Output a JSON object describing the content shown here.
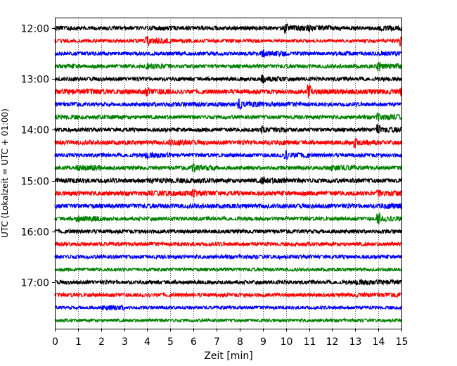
{
  "chart_data": {
    "type": "line",
    "subtype": "helicorder",
    "title": "",
    "xlabel": "Zeit  [min]",
    "ylabel": "UTC (Lokalzeit = UTC + 01:00)",
    "xlim": [
      0,
      15
    ],
    "x_ticks": [
      "0",
      "1",
      "2",
      "3",
      "4",
      "5",
      "6",
      "7",
      "8",
      "9",
      "10",
      "11",
      "12",
      "13",
      "14",
      "15"
    ],
    "x_gridlines": "dotted",
    "row_interval_minutes": 15,
    "y_tick_labels": [
      {
        "row": 0,
        "label": "12:00"
      },
      {
        "row": 4,
        "label": "13:00"
      },
      {
        "row": 8,
        "label": "14:00"
      },
      {
        "row": 12,
        "label": "15:00"
      },
      {
        "row": 16,
        "label": "16:00"
      },
      {
        "row": 20,
        "label": "17:00"
      }
    ],
    "color_cycle": [
      "#000000",
      "#ff0000",
      "#0000ff",
      "#008000"
    ],
    "series": [
      {
        "start": "12:00",
        "color": "#000000",
        "values": [
          0.35,
          0.28,
          0.3,
          0.3,
          0.35,
          0.35,
          0.32,
          0.3,
          0.32,
          0.3,
          0.9,
          0.6,
          0.3,
          0.3,
          0.45,
          0.3
        ]
      },
      {
        "start": "12:15",
        "color": "#ff0000",
        "values": [
          0.3,
          0.28,
          0.25,
          0.3,
          0.9,
          0.3,
          0.28,
          0.3,
          0.3,
          0.25,
          0.25,
          0.25,
          0.25,
          0.28,
          0.28,
          0.9
        ]
      },
      {
        "start": "12:30",
        "color": "#0000ff",
        "values": [
          0.3,
          0.3,
          0.28,
          0.3,
          0.3,
          0.3,
          0.3,
          0.28,
          0.3,
          0.9,
          0.3,
          0.28,
          0.35,
          0.3,
          0.35,
          0.3
        ]
      },
      {
        "start": "12:45",
        "color": "#008000",
        "values": [
          0.35,
          0.3,
          0.3,
          0.3,
          0.55,
          0.3,
          0.3,
          0.3,
          0.3,
          0.3,
          0.3,
          0.3,
          0.3,
          0.3,
          0.9,
          0.3
        ]
      },
      {
        "start": "13:00",
        "color": "#000000",
        "values": [
          0.32,
          0.3,
          0.3,
          0.3,
          0.3,
          0.3,
          0.3,
          0.3,
          0.3,
          0.8,
          0.3,
          0.3,
          0.3,
          0.3,
          0.3,
          0.3
        ]
      },
      {
        "start": "13:15",
        "color": "#ff0000",
        "values": [
          0.55,
          0.45,
          0.4,
          0.4,
          0.8,
          0.35,
          0.35,
          0.35,
          0.35,
          0.35,
          0.35,
          1.3,
          0.4,
          0.4,
          0.4,
          0.9
        ]
      },
      {
        "start": "13:30",
        "color": "#0000ff",
        "values": [
          0.35,
          0.3,
          0.3,
          0.3,
          0.35,
          0.35,
          0.35,
          0.35,
          1.0,
          0.35,
          0.35,
          0.3,
          0.3,
          0.3,
          0.3,
          0.3
        ]
      },
      {
        "start": "13:45",
        "color": "#008000",
        "values": [
          0.35,
          0.3,
          0.35,
          0.3,
          0.3,
          0.3,
          0.3,
          0.3,
          0.3,
          0.3,
          0.3,
          0.3,
          0.3,
          0.3,
          0.8,
          0.3
        ]
      },
      {
        "start": "14:00",
        "color": "#000000",
        "values": [
          0.3,
          0.3,
          0.3,
          0.3,
          0.3,
          0.3,
          0.3,
          0.3,
          0.3,
          0.8,
          0.3,
          0.3,
          0.3,
          0.3,
          1.0,
          0.3
        ]
      },
      {
        "start": "14:15",
        "color": "#ff0000",
        "values": [
          0.35,
          0.35,
          0.35,
          0.35,
          0.35,
          0.7,
          0.35,
          0.35,
          0.35,
          0.4,
          0.35,
          0.35,
          0.35,
          1.0,
          0.35,
          0.5
        ]
      },
      {
        "start": "14:30",
        "color": "#0000ff",
        "values": [
          0.3,
          0.3,
          0.3,
          0.3,
          0.6,
          0.3,
          0.3,
          0.3,
          0.3,
          0.3,
          0.9,
          0.3,
          0.3,
          0.3,
          0.3,
          0.3
        ]
      },
      {
        "start": "14:45",
        "color": "#008000",
        "values": [
          0.3,
          0.6,
          0.3,
          0.3,
          0.3,
          0.3,
          0.8,
          0.3,
          0.3,
          0.3,
          0.3,
          0.3,
          0.6,
          0.3,
          0.3,
          0.3
        ]
      },
      {
        "start": "15:00",
        "color": "#000000",
        "values": [
          0.4,
          0.35,
          0.35,
          0.35,
          0.4,
          0.4,
          0.4,
          0.35,
          0.35,
          0.8,
          0.35,
          0.35,
          0.35,
          0.35,
          0.35,
          0.35
        ]
      },
      {
        "start": "15:15",
        "color": "#ff0000",
        "values": [
          0.35,
          0.35,
          0.35,
          0.35,
          0.45,
          0.45,
          0.7,
          0.35,
          0.35,
          0.35,
          0.35,
          0.35,
          0.35,
          0.35,
          0.8,
          0.35
        ]
      },
      {
        "start": "15:30",
        "color": "#0000ff",
        "values": [
          0.35,
          0.35,
          0.35,
          0.35,
          0.35,
          0.35,
          0.35,
          0.35,
          0.35,
          0.35,
          0.35,
          0.35,
          0.35,
          0.35,
          0.45,
          0.35
        ]
      },
      {
        "start": "15:45",
        "color": "#008000",
        "values": [
          0.3,
          0.6,
          0.3,
          0.3,
          0.3,
          0.3,
          0.3,
          0.3,
          0.3,
          0.3,
          0.3,
          0.3,
          0.3,
          0.3,
          1.0,
          0.3
        ]
      },
      {
        "start": "16:00",
        "color": "#000000",
        "values": [
          0.3,
          0.3,
          0.3,
          0.3,
          0.3,
          0.3,
          0.3,
          0.3,
          0.3,
          0.3,
          0.3,
          0.3,
          0.3,
          0.3,
          0.3,
          0.3
        ]
      },
      {
        "start": "16:15",
        "color": "#ff0000",
        "values": [
          0.3,
          0.3,
          0.3,
          0.3,
          0.3,
          0.3,
          0.3,
          0.3,
          0.3,
          0.3,
          0.3,
          0.3,
          0.3,
          0.3,
          0.3,
          0.3
        ]
      },
      {
        "start": "16:30",
        "color": "#0000ff",
        "values": [
          0.3,
          0.3,
          0.3,
          0.3,
          0.3,
          0.3,
          0.3,
          0.3,
          0.3,
          0.3,
          0.3,
          0.3,
          0.3,
          0.3,
          0.3,
          0.3
        ]
      },
      {
        "start": "16:45",
        "color": "#008000",
        "values": [
          0.25,
          0.25,
          0.25,
          0.25,
          0.25,
          0.25,
          0.25,
          0.25,
          0.25,
          0.25,
          0.25,
          0.25,
          0.25,
          0.25,
          0.25,
          0.25
        ]
      },
      {
        "start": "17:00",
        "color": "#000000",
        "values": [
          0.3,
          0.3,
          0.3,
          0.3,
          0.3,
          0.3,
          0.3,
          0.3,
          0.3,
          0.3,
          0.3,
          0.3,
          0.3,
          0.45,
          0.4,
          0.4
        ]
      },
      {
        "start": "17:15",
        "color": "#ff0000",
        "values": [
          0.3,
          0.3,
          0.3,
          0.3,
          0.3,
          0.3,
          0.3,
          0.3,
          0.3,
          0.3,
          0.3,
          0.3,
          0.3,
          0.35,
          0.35,
          0.3
        ]
      },
      {
        "start": "17:30",
        "color": "#0000ff",
        "values": [
          0.25,
          0.25,
          0.4,
          0.25,
          0.25,
          0.25,
          0.25,
          0.25,
          0.25,
          0.25,
          0.25,
          0.25,
          0.25,
          0.25,
          0.25,
          0.25
        ]
      },
      {
        "start": "17:45",
        "color": "#008000",
        "values": [
          0.25,
          0.25,
          0.25,
          0.25,
          0.25,
          0.25,
          0.25,
          0.25,
          0.25,
          0.25,
          0.25,
          0.25,
          0.25,
          0.25,
          0.25,
          0.25
        ]
      }
    ]
  }
}
